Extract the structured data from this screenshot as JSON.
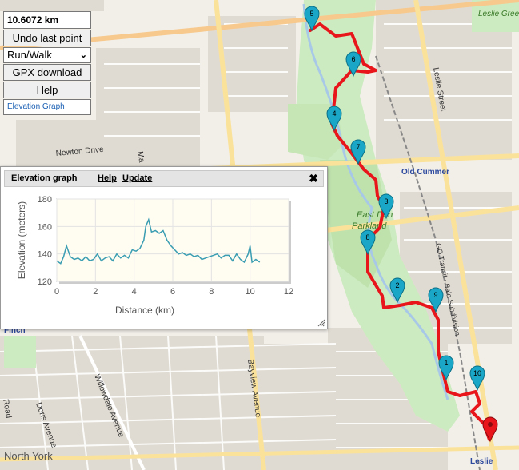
{
  "panel": {
    "distance": "10.6072 km",
    "undo_label": "Undo last point",
    "mode_selected": "Run/Walk",
    "gpx_label": "GPX download",
    "help_label": "Help",
    "elevation_link": "Elevation Graph"
  },
  "elevation_panel": {
    "title": "Elevation graph",
    "help": "Help",
    "update": "Update",
    "close": "✖"
  },
  "map_labels": [
    {
      "text": "Newton Drive"
    },
    {
      "text": "Old Cummer"
    },
    {
      "text": "East Don"
    },
    {
      "text": "Parkland"
    },
    {
      "text": "Leslie Street"
    },
    {
      "text": "GO Transit - Bala Subdivision"
    },
    {
      "text": "Willowdale Avenue"
    },
    {
      "text": "Bayview Avenue"
    },
    {
      "text": "North York"
    },
    {
      "text": "Leslie"
    },
    {
      "text": "Leslie Green"
    },
    {
      "text": "Doris Avenue"
    },
    {
      "text": "Finch"
    },
    {
      "text": "Road"
    },
    {
      "text": "Ma"
    }
  ],
  "markers": [
    "5",
    "6",
    "4",
    "7",
    "3",
    "8",
    "2",
    "9",
    "1",
    "10"
  ],
  "colors": {
    "route": "#e8161b",
    "marker": "#1aa7c7",
    "end_marker": "#e8161b",
    "elevation_line": "#3a9db2"
  },
  "chart_data": {
    "type": "line",
    "title": "",
    "xlabel": "Distance (km)",
    "ylabel": "Elevation (meters)",
    "xlim": [
      0,
      12
    ],
    "ylim": [
      120,
      180
    ],
    "xticks": [
      "0",
      "2",
      "4",
      "6",
      "8",
      "10",
      "12"
    ],
    "yticks": [
      "120",
      "140",
      "160",
      "180"
    ],
    "grid": true,
    "x": [
      0.0,
      0.2,
      0.35,
      0.5,
      0.7,
      0.9,
      1.1,
      1.3,
      1.5,
      1.7,
      1.9,
      2.1,
      2.3,
      2.5,
      2.7,
      2.9,
      3.1,
      3.3,
      3.5,
      3.7,
      3.9,
      4.1,
      4.3,
      4.5,
      4.6,
      4.75,
      4.9,
      5.1,
      5.3,
      5.5,
      5.7,
      5.9,
      6.1,
      6.3,
      6.5,
      6.7,
      6.9,
      7.1,
      7.3,
      7.5,
      7.7,
      7.9,
      8.1,
      8.3,
      8.5,
      8.7,
      8.9,
      9.1,
      9.3,
      9.5,
      9.7,
      9.9,
      10.0,
      10.1,
      10.3,
      10.5
    ],
    "y": [
      135,
      133,
      138,
      146,
      138,
      136,
      137,
      135,
      138,
      135,
      136,
      140,
      135,
      137,
      138,
      135,
      140,
      137,
      139,
      137,
      143,
      142,
      144,
      150,
      160,
      165,
      156,
      157,
      155,
      157,
      150,
      146,
      143,
      140,
      141,
      139,
      140,
      138,
      139,
      136,
      137,
      138,
      139,
      140,
      137,
      139,
      139,
      135,
      140,
      136,
      134,
      140,
      146,
      134,
      136,
      134
    ]
  }
}
